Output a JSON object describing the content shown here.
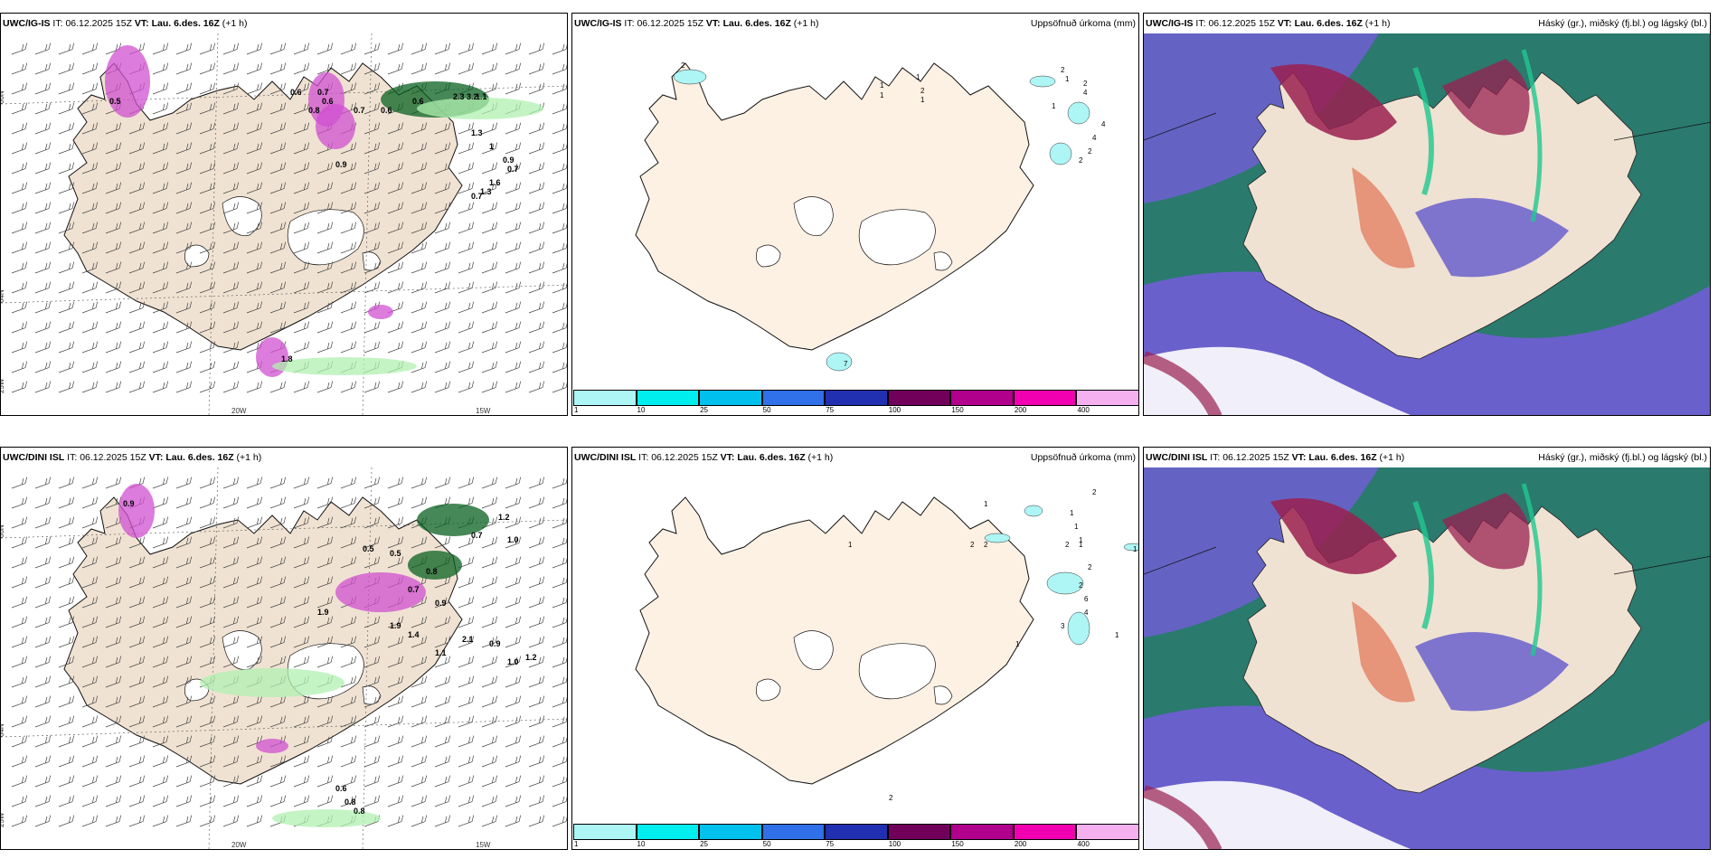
{
  "panels": [
    {
      "model": "UWC/IG-IS",
      "it_label": "IT:",
      "it": "06.12.2025 15Z",
      "vt_label": "VT:",
      "vt": "Lau. 6.des. 16Z",
      "lead": "(+1 h)",
      "right_title": "",
      "lat_labels": [
        "66N",
        "64N",
        "25W"
      ],
      "lon_labels": [
        "20W",
        "15W"
      ],
      "values": [
        "0.6",
        "0.7",
        "0.6",
        "0.8",
        "0.7",
        "0.6",
        "2.3",
        "3.2",
        "1.1",
        "0.6",
        "0.5",
        "1.3",
        "1",
        "0.9",
        "0.7",
        "1.6",
        "1.3",
        "0.7",
        "0.9",
        "1.8"
      ]
    },
    {
      "model": "UWC/IG-IS",
      "it_label": "IT:",
      "it": "06.12.2025 15Z",
      "vt_label": "VT:",
      "vt": "Lau. 6.des. 16Z",
      "lead": "(+1 h)",
      "right_title": "Uppsöfnuð úrkoma (mm)",
      "values": [
        "2",
        "1",
        "1",
        "2",
        "1",
        "1",
        "2",
        "1",
        "2",
        "4",
        "4",
        "4",
        "2",
        "2",
        "1",
        "7"
      ]
    },
    {
      "model": "UWC/IG-IS",
      "it_label": "IT:",
      "it": "06.12.2025 15Z",
      "vt_label": "VT:",
      "vt": "Lau. 6.des. 16Z",
      "lead": "(+1 h)",
      "right_title": "Háský (gr.), miðský (fj.bl.) og lágský (bl.)"
    },
    {
      "model": "UWC/DINI ISL",
      "it_label": "IT:",
      "it": "06.12.2025 15Z",
      "vt_label": "VT:",
      "vt": "Lau. 6.des. 16Z",
      "lead": "(+1 h)",
      "right_title": "",
      "lat_labels": [
        "66N",
        "64N",
        "25W"
      ],
      "lon_labels": [
        "20W",
        "15W"
      ],
      "values": [
        "0.9",
        "0.5",
        "0.7",
        "1.2",
        "1.0",
        "0.8",
        "1.9",
        "1.4",
        "1.1",
        "2.1",
        "1.0",
        "1.2",
        "0.9",
        "0.5",
        "1.9",
        "0.7",
        "0.9",
        "0.6",
        "0.8",
        "0.8"
      ]
    },
    {
      "model": "UWC/DINI ISL",
      "it_label": "IT:",
      "it": "06.12.2025 15Z",
      "vt_label": "VT:",
      "vt": "Lau. 6.des. 16Z",
      "lead": "(+1 h)",
      "right_title": "Uppsöfnuð úrkoma (mm)",
      "values": [
        "2",
        "1",
        "1",
        "1",
        "1",
        "1",
        "2",
        "2",
        "2",
        "1",
        "2",
        "2",
        "6",
        "4",
        "3",
        "1",
        "1",
        "1",
        "2"
      ]
    },
    {
      "model": "UWC/DINI ISL",
      "it_label": "IT:",
      "it": "06.12.2025 15Z",
      "vt_label": "VT:",
      "vt": "Lau. 6.des. 16Z",
      "lead": "(+1 h)",
      "right_title": "Háský (gr.), miðský (fj.bl.) og lágský (bl.)"
    }
  ],
  "colorbar": {
    "ticks": [
      "1",
      "10",
      "25",
      "50",
      "75",
      "100",
      "150",
      "200",
      "400"
    ],
    "colors": [
      "#aef5f5",
      "#00eeee",
      "#00c0ee",
      "#3070e8",
      "#2030b0",
      "#70005a",
      "#b0008c",
      "#f000b0",
      "#f5b0f0"
    ]
  },
  "colors": {
    "land": "#f0e2d2",
    "land_precip": "#fdf1e4",
    "green_light": "#b0f0b0",
    "green_dark": "#0a6020",
    "magenta": "#d050d0",
    "cloud_high": "#2a7a6e",
    "cloud_mid": "#6a60cc",
    "cloud_low": "#9a2050",
    "cloud_green": "#20c890"
  }
}
